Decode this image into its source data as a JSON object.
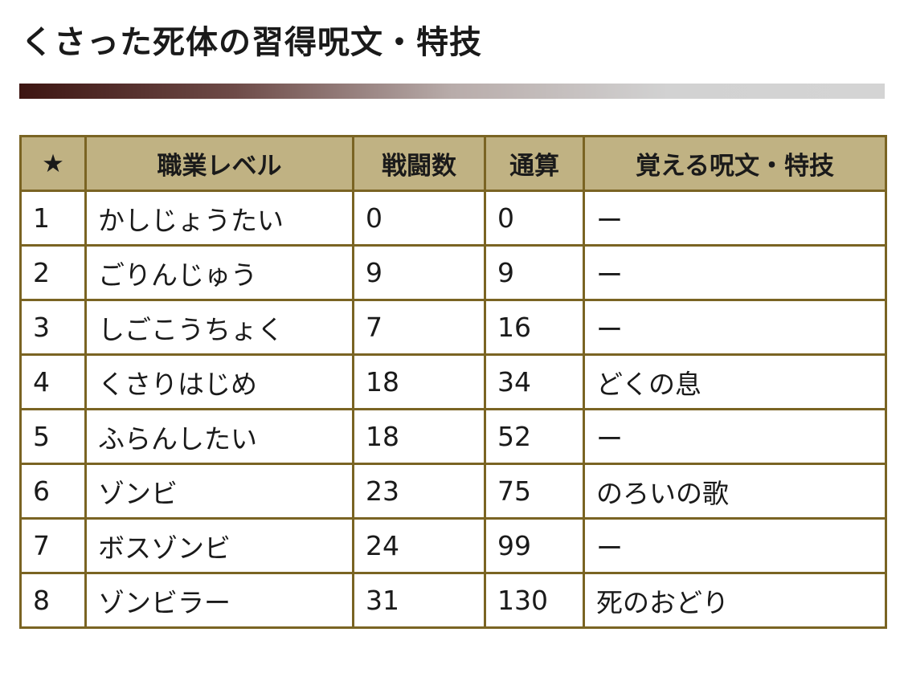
{
  "page": {
    "title": "くさった死体の習得呪文・特技"
  },
  "table": {
    "headers": {
      "star": "★",
      "job_level": "職業レベル",
      "battles": "戦闘数",
      "total": "通算",
      "learned": "覚える呪文・特技"
    },
    "rows": [
      {
        "level": "1",
        "title": "かしじょうたい",
        "battles": "0",
        "total": "0",
        "skill": "ー"
      },
      {
        "level": "2",
        "title": "ごりんじゅう",
        "battles": "9",
        "total": "9",
        "skill": "ー"
      },
      {
        "level": "3",
        "title": "しごこうちょく",
        "battles": "7",
        "total": "16",
        "skill": "ー"
      },
      {
        "level": "4",
        "title": "くさりはじめ",
        "battles": "18",
        "total": "34",
        "skill": "どくの息"
      },
      {
        "level": "5",
        "title": "ふらんしたい",
        "battles": "18",
        "total": "52",
        "skill": "ー"
      },
      {
        "level": "6",
        "title": "ゾンビ",
        "battles": "23",
        "total": "75",
        "skill": "のろいの歌"
      },
      {
        "level": "7",
        "title": "ボスゾンビ",
        "battles": "24",
        "total": "99",
        "skill": "ー"
      },
      {
        "level": "8",
        "title": "ゾンビラー",
        "battles": "31",
        "total": "130",
        "skill": "死のおどり"
      }
    ]
  },
  "colors": {
    "header_background": "#c0b283",
    "table_border": "#7a6423",
    "rule_gradient_start": "#3d1512",
    "rule_gradient_end": "#d4d4d4"
  }
}
